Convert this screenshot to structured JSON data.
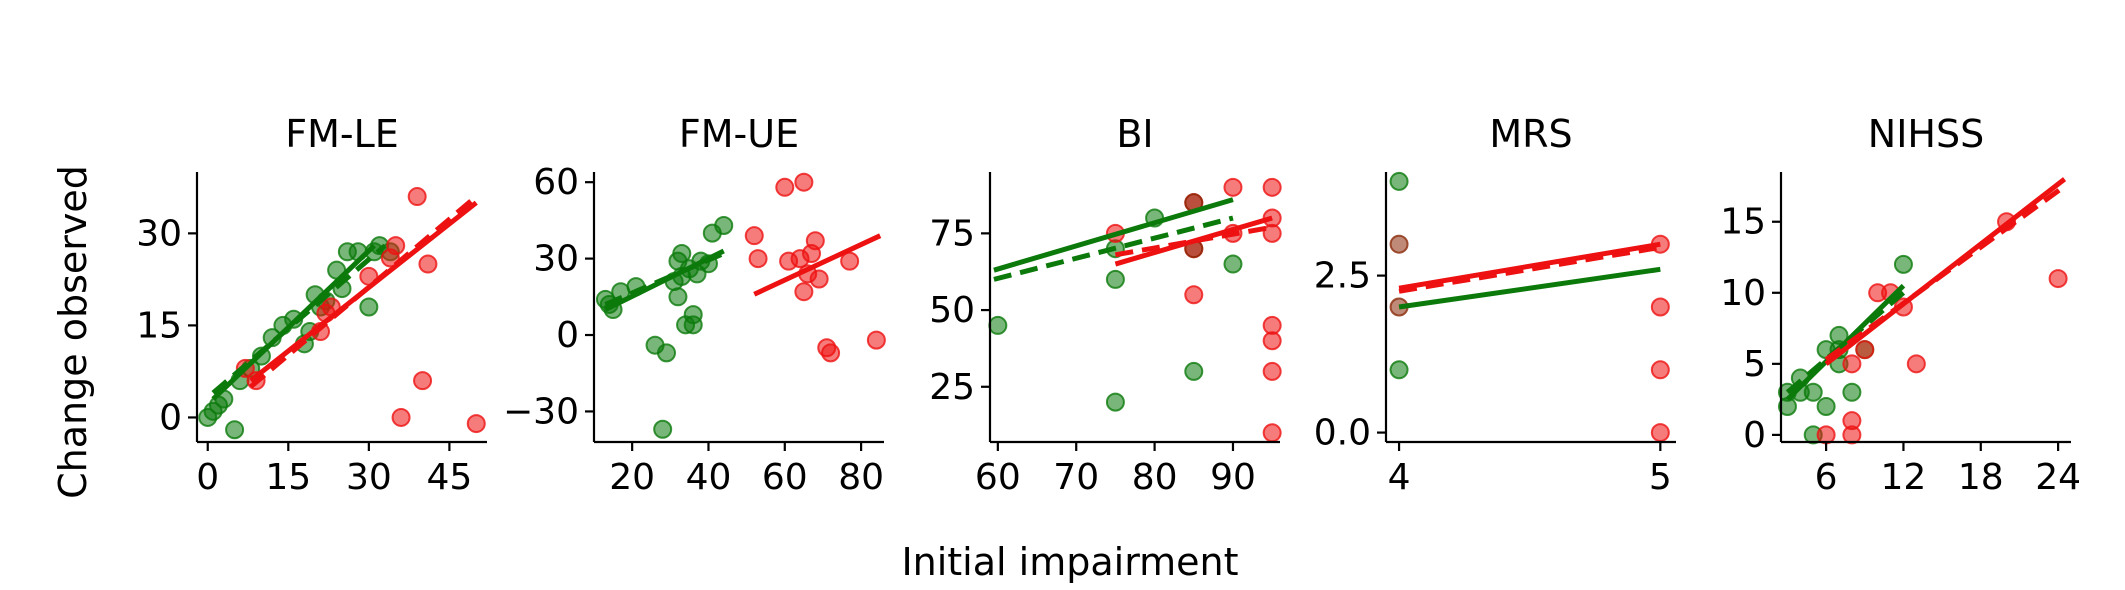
{
  "xlabel": "Initial impairment",
  "ylabel": "Change observed",
  "colors": {
    "green": "#0b7a0b",
    "red": "#ee1111",
    "brown": "#8b2a0a"
  },
  "chart_data": [
    {
      "type": "scatter",
      "title": "FM-LE",
      "xlim": [
        -2,
        52
      ],
      "ylim": [
        -4,
        40
      ],
      "xticks": [
        0,
        15,
        30,
        45
      ],
      "xtick_labels": [
        "0",
        "15",
        "30",
        "45"
      ],
      "yticks": [
        0,
        15,
        30
      ],
      "ytick_labels": [
        "0",
        "15",
        "30"
      ],
      "points": {
        "green": [
          [
            0,
            0
          ],
          [
            1,
            1
          ],
          [
            2,
            2
          ],
          [
            3,
            3
          ],
          [
            5,
            -2
          ],
          [
            6,
            6
          ],
          [
            8,
            8
          ],
          [
            10,
            10
          ],
          [
            12,
            13
          ],
          [
            14,
            15
          ],
          [
            16,
            16
          ],
          [
            18,
            12
          ],
          [
            19,
            14
          ],
          [
            20,
            20
          ],
          [
            21,
            18
          ],
          [
            22,
            19
          ],
          [
            24,
            24
          ],
          [
            25,
            21
          ],
          [
            26,
            27
          ],
          [
            28,
            27
          ],
          [
            30,
            18
          ],
          [
            31,
            27
          ],
          [
            32,
            28
          ],
          [
            34,
            27
          ]
        ],
        "red": [
          [
            7,
            8
          ],
          [
            9,
            6
          ],
          [
            21,
            14
          ],
          [
            22,
            17
          ],
          [
            23,
            18
          ],
          [
            30,
            23
          ],
          [
            34,
            26
          ],
          [
            35,
            28
          ],
          [
            36,
            0
          ],
          [
            39,
            36
          ],
          [
            40,
            6
          ],
          [
            41,
            25
          ],
          [
            50,
            -1
          ]
        ]
      },
      "lines": [
        {
          "color": "green",
          "style": "solid",
          "x": [
            1,
            31
          ],
          "y": [
            3,
            28
          ]
        },
        {
          "color": "green",
          "style": "dashed",
          "x": [
            1,
            33
          ],
          "y": [
            4,
            28
          ]
        },
        {
          "color": "red",
          "style": "solid",
          "x": [
            8,
            50
          ],
          "y": [
            6,
            35
          ]
        },
        {
          "color": "red",
          "style": "dashed",
          "x": [
            8,
            50
          ],
          "y": [
            5,
            36
          ]
        }
      ]
    },
    {
      "type": "scatter",
      "title": "FM-UE",
      "xlim": [
        10,
        86
      ],
      "ylim": [
        -42,
        64
      ],
      "xticks": [
        20,
        40,
        60,
        80
      ],
      "xtick_labels": [
        "20",
        "40",
        "60",
        "80"
      ],
      "yticks": [
        -30,
        0,
        30,
        60
      ],
      "ytick_labels": [
        "−30",
        "0",
        "30",
        "60"
      ],
      "points": {
        "green": [
          [
            13,
            14
          ],
          [
            14,
            12
          ],
          [
            15,
            10
          ],
          [
            17,
            17
          ],
          [
            21,
            19
          ],
          [
            26,
            -4
          ],
          [
            28,
            -37
          ],
          [
            29,
            -7
          ],
          [
            31,
            21
          ],
          [
            32,
            15
          ],
          [
            32,
            29
          ],
          [
            33,
            32
          ],
          [
            33,
            23
          ],
          [
            34,
            4
          ],
          [
            35,
            26
          ],
          [
            36,
            4
          ],
          [
            36,
            8
          ],
          [
            37,
            24
          ],
          [
            38,
            29
          ],
          [
            40,
            28
          ],
          [
            41,
            40
          ],
          [
            44,
            43
          ]
        ],
        "red": [
          [
            52,
            39
          ],
          [
            53,
            30
          ],
          [
            60,
            58
          ],
          [
            61,
            29
          ],
          [
            64,
            30
          ],
          [
            65,
            60
          ],
          [
            65,
            17
          ],
          [
            66,
            24
          ],
          [
            67,
            32
          ],
          [
            68,
            37
          ],
          [
            69,
            22
          ],
          [
            71,
            -5
          ],
          [
            72,
            -7
          ],
          [
            77,
            29
          ],
          [
            84,
            -2
          ]
        ]
      },
      "lines": [
        {
          "color": "green",
          "style": "solid",
          "x": [
            13,
            44
          ],
          "y": [
            10,
            33
          ]
        },
        {
          "color": "green",
          "style": "dashed",
          "x": [
            13,
            44
          ],
          "y": [
            12,
            32
          ]
        },
        {
          "color": "red",
          "style": "solid",
          "x": [
            52,
            85
          ],
          "y": [
            16,
            39
          ]
        }
      ]
    },
    {
      "type": "scatter",
      "title": "BI",
      "xlim": [
        59,
        96
      ],
      "ylim": [
        7,
        95
      ],
      "xticks": [
        60,
        70,
        80,
        90
      ],
      "xtick_labels": [
        "60",
        "70",
        "80",
        "90"
      ],
      "yticks": [
        25,
        50,
        75
      ],
      "ytick_labels": [
        "25",
        "50",
        "75"
      ],
      "points": {
        "green": [
          [
            60,
            45
          ],
          [
            75,
            20
          ],
          [
            75,
            60
          ],
          [
            75,
            70
          ],
          [
            80,
            80
          ],
          [
            85,
            30
          ],
          [
            90,
            65
          ]
        ],
        "red": [
          [
            75,
            75
          ],
          [
            85,
            55
          ],
          [
            85,
            70
          ],
          [
            85,
            85
          ],
          [
            90,
            90
          ],
          [
            90,
            75
          ],
          [
            95,
            90
          ],
          [
            95,
            80
          ],
          [
            95,
            75
          ],
          [
            95,
            45
          ],
          [
            95,
            40
          ],
          [
            95,
            30
          ],
          [
            95,
            10
          ]
        ],
        "brown": [
          [
            85,
            85
          ],
          [
            85,
            70
          ]
        ]
      },
      "lines": [
        {
          "color": "green",
          "style": "solid",
          "x": [
            59.5,
            90
          ],
          "y": [
            63,
            86
          ]
        },
        {
          "color": "green",
          "style": "dashed",
          "x": [
            59.5,
            90
          ],
          "y": [
            60,
            80
          ]
        },
        {
          "color": "red",
          "style": "solid",
          "x": [
            75,
            95
          ],
          "y": [
            65,
            80
          ]
        },
        {
          "color": "red",
          "style": "dashed",
          "x": [
            75,
            95
          ],
          "y": [
            68,
            77
          ]
        }
      ]
    },
    {
      "type": "scatter",
      "title": "MRS",
      "xlim": [
        3.95,
        5.06
      ],
      "ylim": [
        -0.15,
        4.15
      ],
      "xticks": [
        4,
        5
      ],
      "xtick_labels": [
        "4",
        "5"
      ],
      "yticks": [
        0,
        2.5
      ],
      "ytick_labels": [
        "0.0",
        "2.5"
      ],
      "points": {
        "green": [
          [
            4,
            4
          ],
          [
            4,
            1
          ]
        ],
        "brown": [
          [
            4,
            3
          ],
          [
            4,
            2
          ]
        ],
        "red": [
          [
            5,
            3
          ],
          [
            5,
            2
          ],
          [
            5,
            1
          ],
          [
            5,
            0
          ]
        ]
      },
      "lines": [
        {
          "color": "green",
          "style": "solid",
          "x": [
            4,
            5
          ],
          "y": [
            2.0,
            2.6
          ]
        },
        {
          "color": "red",
          "style": "solid",
          "x": [
            4,
            5
          ],
          "y": [
            2.3,
            3.0
          ]
        },
        {
          "color": "red",
          "style": "dashed",
          "x": [
            4,
            5
          ],
          "y": [
            2.25,
            2.95
          ]
        }
      ]
    },
    {
      "type": "scatter",
      "title": "NIHSS",
      "xlim": [
        2.5,
        25
      ],
      "ylim": [
        -0.5,
        18.5
      ],
      "xticks": [
        6,
        12,
        18,
        24
      ],
      "xtick_labels": [
        "6",
        "12",
        "18",
        "24"
      ],
      "yticks": [
        0,
        5,
        10,
        15
      ],
      "ytick_labels": [
        "0",
        "5",
        "10",
        "15"
      ],
      "points": {
        "green": [
          [
            3,
            2
          ],
          [
            3,
            3
          ],
          [
            4,
            3
          ],
          [
            4,
            4
          ],
          [
            5,
            3
          ],
          [
            5,
            0
          ],
          [
            6,
            2
          ],
          [
            6,
            6
          ],
          [
            7,
            5
          ],
          [
            7,
            6
          ],
          [
            7,
            7
          ],
          [
            8,
            3
          ],
          [
            9,
            6
          ],
          [
            12,
            12
          ]
        ],
        "red": [
          [
            6,
            0
          ],
          [
            8,
            0
          ],
          [
            8,
            1
          ],
          [
            8,
            5
          ],
          [
            9,
            6
          ],
          [
            10,
            10
          ],
          [
            11,
            10
          ],
          [
            12,
            9
          ],
          [
            13,
            5
          ],
          [
            20,
            15
          ],
          [
            24,
            11
          ]
        ]
      },
      "lines": [
        {
          "color": "green",
          "style": "solid",
          "x": [
            3,
            12
          ],
          "y": [
            2.5,
            10.5
          ]
        },
        {
          "color": "green",
          "style": "dashed",
          "x": [
            3,
            12
          ],
          "y": [
            3,
            10
          ]
        },
        {
          "color": "red",
          "style": "solid",
          "x": [
            6,
            24.5
          ],
          "y": [
            5,
            18
          ]
        },
        {
          "color": "red",
          "style": "dashed",
          "x": [
            6,
            24.5
          ],
          "y": [
            5.3,
            17.5
          ]
        }
      ]
    }
  ]
}
